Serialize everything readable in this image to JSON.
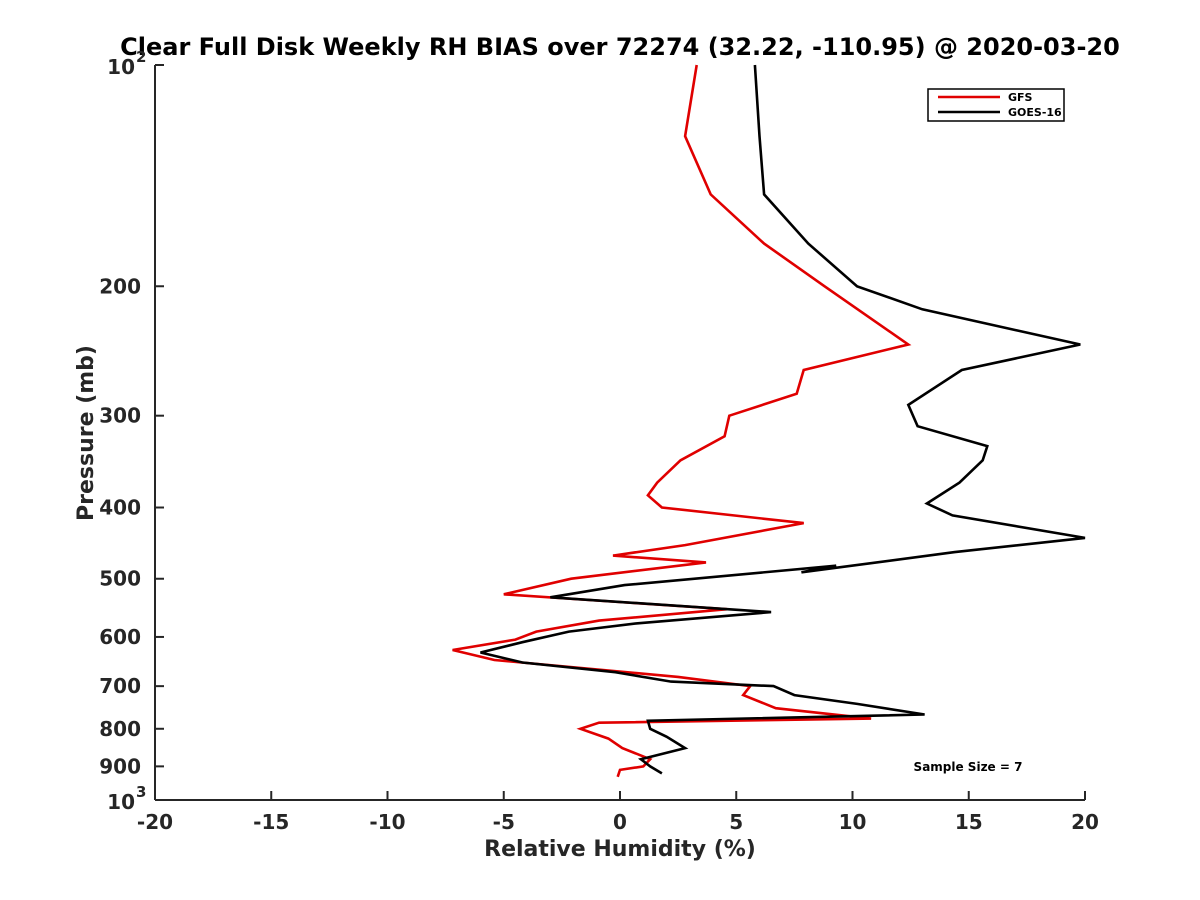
{
  "chart_data": {
    "type": "line",
    "title": "Clear Full Disk Weekly RH BIAS over 72274 (32.22, -110.95) @ 2020-03-20",
    "xlabel": "Relative Humidity (%)",
    "ylabel": "Pressure (mb)",
    "xlim": [
      -20,
      20
    ],
    "ylim": [
      100,
      1000
    ],
    "y_scale": "log",
    "y_reversed": true,
    "grid": false,
    "legend_position": "top-right",
    "note": "Sample Size = 7",
    "x_ticks": [
      "-20",
      "-15",
      "-10",
      "-5",
      "0",
      "5",
      "10",
      "15",
      "20"
    ],
    "y_ticks": [
      {
        "value": 100,
        "base": "10",
        "exp": "2"
      },
      {
        "value": 200,
        "label": "200"
      },
      {
        "value": 300,
        "label": "300"
      },
      {
        "value": 400,
        "label": "400"
      },
      {
        "value": 500,
        "label": "500"
      },
      {
        "value": 600,
        "label": "600"
      },
      {
        "value": 700,
        "label": "700"
      },
      {
        "value": 800,
        "label": "800"
      },
      {
        "value": 900,
        "label": "900"
      },
      {
        "value": 1000,
        "base": "10",
        "exp": "3"
      }
    ],
    "series": [
      {
        "name": "GFS",
        "color": "#e00000",
        "points": [
          [
            3.3,
            100
          ],
          [
            2.8,
            125
          ],
          [
            3.9,
            150
          ],
          [
            6.2,
            175
          ],
          [
            8.8,
            200
          ],
          [
            12.4,
            240
          ],
          [
            7.9,
            260
          ],
          [
            7.6,
            280
          ],
          [
            4.7,
            300
          ],
          [
            4.5,
            320
          ],
          [
            2.6,
            345
          ],
          [
            1.6,
            370
          ],
          [
            1.2,
            385
          ],
          [
            1.8,
            400
          ],
          [
            7.9,
            420
          ],
          [
            2.8,
            450
          ],
          [
            -0.3,
            465
          ],
          [
            3.7,
            475
          ],
          [
            -2.1,
            500
          ],
          [
            -5.0,
            525
          ],
          [
            4.6,
            550
          ],
          [
            -0.9,
            570
          ],
          [
            -3.6,
            590
          ],
          [
            -4.5,
            605
          ],
          [
            -7.2,
            625
          ],
          [
            -5.4,
            645
          ],
          [
            2.5,
            680
          ],
          [
            5.6,
            700
          ],
          [
            5.3,
            720
          ],
          [
            6.7,
            750
          ],
          [
            10.8,
            775
          ],
          [
            -0.9,
            785
          ],
          [
            -1.7,
            800
          ],
          [
            -0.5,
            825
          ],
          [
            0.1,
            850
          ],
          [
            1.3,
            880
          ],
          [
            1.0,
            900
          ],
          [
            0.0,
            910
          ],
          [
            -0.1,
            930
          ]
        ]
      },
      {
        "name": "GOES-16",
        "color": "#000000",
        "points": [
          [
            5.8,
            100
          ],
          [
            6.0,
            125
          ],
          [
            6.2,
            150
          ],
          [
            8.1,
            175
          ],
          [
            10.2,
            200
          ],
          [
            13.0,
            215
          ],
          [
            19.8,
            240
          ],
          [
            14.7,
            260
          ],
          [
            12.4,
            290
          ],
          [
            12.8,
            310
          ],
          [
            15.8,
            330
          ],
          [
            15.6,
            345
          ],
          [
            14.6,
            370
          ],
          [
            13.2,
            395
          ],
          [
            14.3,
            410
          ],
          [
            20.0,
            440
          ],
          [
            14.4,
            460
          ],
          [
            7.8,
            490
          ],
          [
            9.3,
            480
          ],
          [
            0.2,
            510
          ],
          [
            -3.0,
            530
          ],
          [
            6.5,
            555
          ],
          [
            0.7,
            575
          ],
          [
            -2.2,
            590
          ],
          [
            -4.2,
            610
          ],
          [
            -6.0,
            630
          ],
          [
            -4.2,
            650
          ],
          [
            -0.2,
            670
          ],
          [
            2.2,
            690
          ],
          [
            6.6,
            700
          ],
          [
            7.5,
            720
          ],
          [
            10.2,
            740
          ],
          [
            13.1,
            765
          ],
          [
            1.2,
            780
          ],
          [
            1.3,
            800
          ],
          [
            2.0,
            820
          ],
          [
            2.8,
            850
          ],
          [
            0.9,
            880
          ],
          [
            1.3,
            900
          ],
          [
            1.8,
            920
          ]
        ]
      }
    ]
  }
}
